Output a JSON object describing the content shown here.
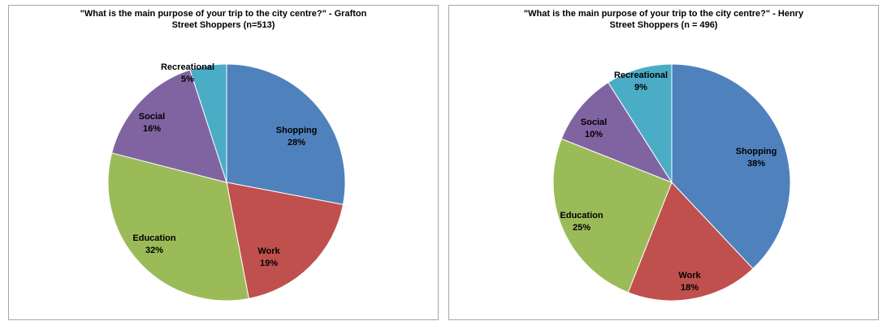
{
  "chart_data": [
    {
      "type": "pie",
      "title_lines": [
        "\"What is the main purpose of your trip to the city centre?\" - Grafton",
        "Street Shoppers (n=513)"
      ],
      "slices": [
        {
          "label": "Shopping",
          "value": 28,
          "display": "28%",
          "color": "#4F81BD"
        },
        {
          "label": "Work",
          "value": 19,
          "display": "19%",
          "color": "#C0504D"
        },
        {
          "label": "Education",
          "value": 32,
          "display": "32%",
          "color": "#9BBB59"
        },
        {
          "label": "Social",
          "value": 16,
          "display": "16%",
          "color": "#8064A2"
        },
        {
          "label": "Recreational",
          "value": 5,
          "display": "5%",
          "color": "#4BACC6"
        }
      ],
      "start_angle_deg": 0,
      "direction": "clockwise"
    },
    {
      "type": "pie",
      "title_lines": [
        "\"What is the main purpose of your trip to the city centre?\" - Henry",
        "Street Shoppers (n = 496)"
      ],
      "slices": [
        {
          "label": "Shopping",
          "value": 38,
          "display": "38%",
          "color": "#4F81BD"
        },
        {
          "label": "Work",
          "value": 18,
          "display": "18%",
          "color": "#C0504D"
        },
        {
          "label": "Education",
          "value": 25,
          "display": "25%",
          "color": "#9BBB59"
        },
        {
          "label": "Social",
          "value": 10,
          "display": "10%",
          "color": "#8064A2"
        },
        {
          "label": "Recreational",
          "value": 9,
          "display": "9%",
          "color": "#4BACC6"
        }
      ],
      "start_angle_deg": 0,
      "direction": "clockwise"
    }
  ]
}
